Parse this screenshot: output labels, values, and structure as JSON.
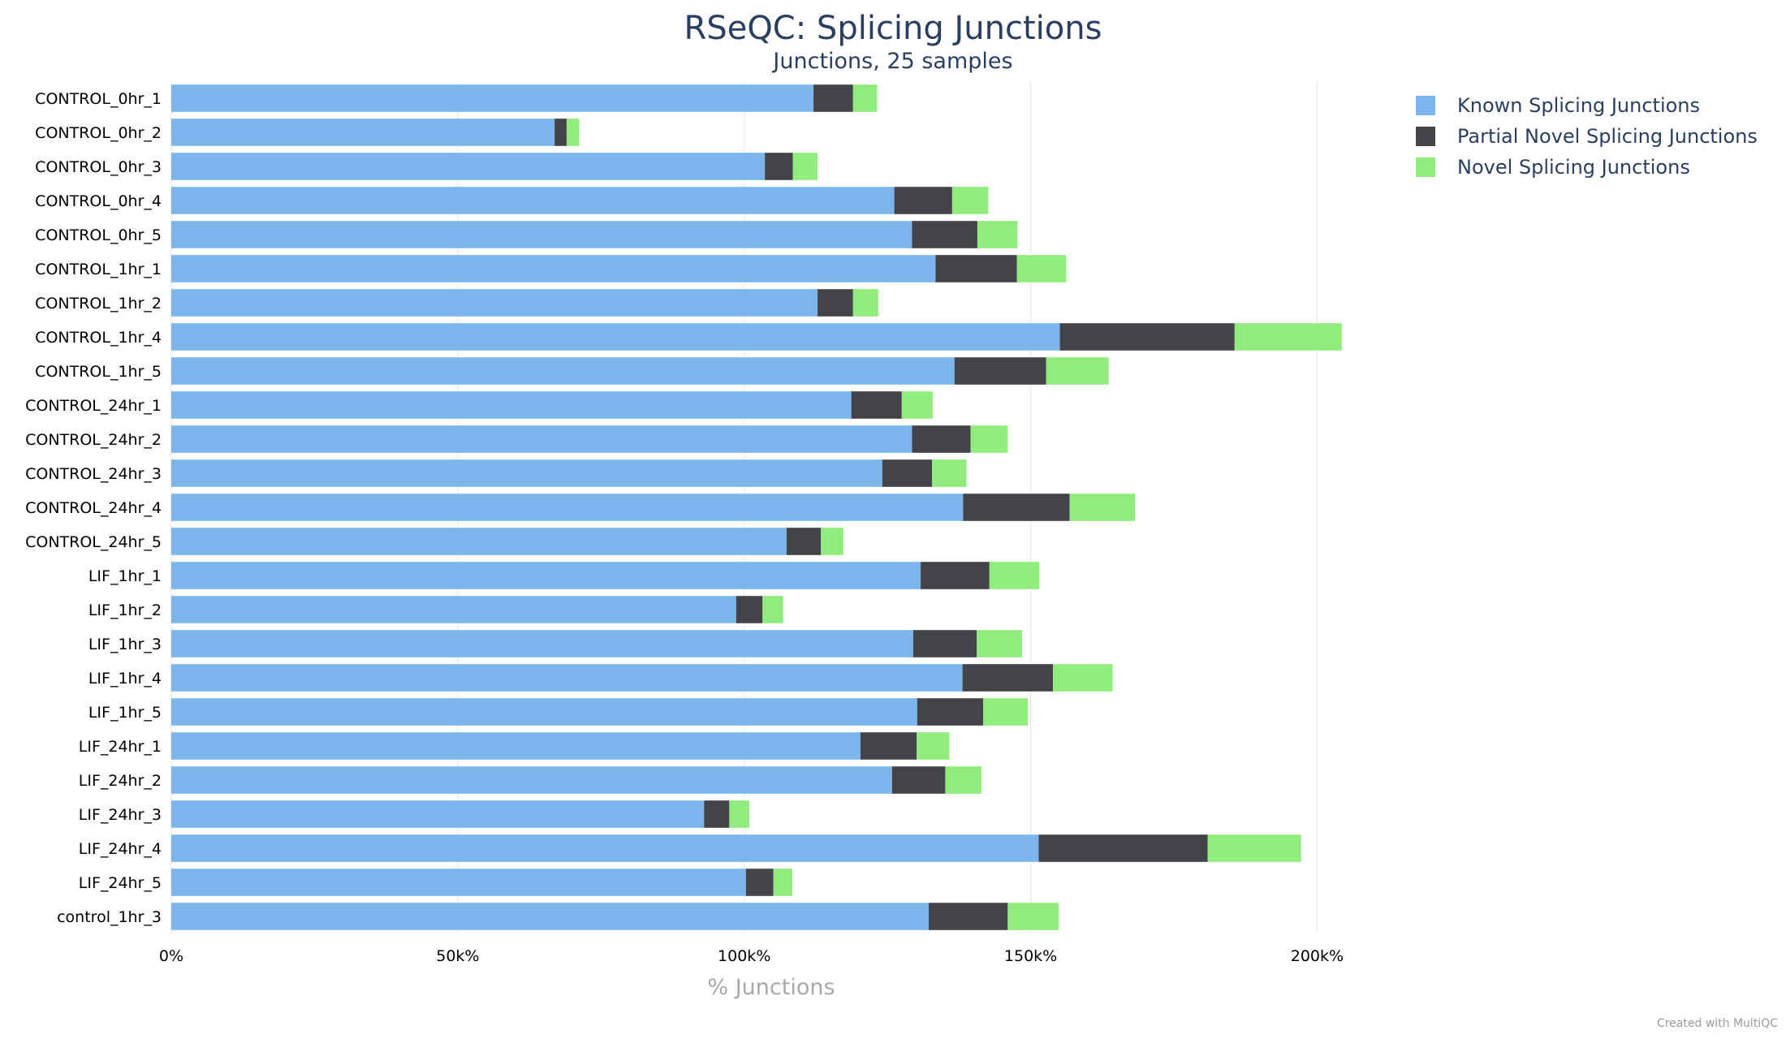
{
  "chart_data": {
    "type": "bar",
    "orientation": "horizontal",
    "stacked": true,
    "title": "RSeQC: Splicing Junctions",
    "subtitle": "Junctions, 25 samples",
    "xlabel": "% Junctions",
    "ylabel": "",
    "xlim": [
      0,
      210000
    ],
    "x_ticks": [
      {
        "value": 0,
        "label": "0%"
      },
      {
        "value": 50000,
        "label": "50k%"
      },
      {
        "value": 100000,
        "label": "100k%"
      },
      {
        "value": 150000,
        "label": "150k%"
      },
      {
        "value": 200000,
        "label": "200k%"
      }
    ],
    "grid": true,
    "legend_position": "top-right",
    "credit": "Created with MultiQC",
    "categories": [
      "CONTROL_0hr_1",
      "CONTROL_0hr_2",
      "CONTROL_0hr_3",
      "CONTROL_0hr_4",
      "CONTROL_0hr_5",
      "CONTROL_1hr_1",
      "CONTROL_1hr_2",
      "CONTROL_1hr_4",
      "CONTROL_1hr_5",
      "CONTROL_24hr_1",
      "CONTROL_24hr_2",
      "CONTROL_24hr_3",
      "CONTROL_24hr_4",
      "CONTROL_24hr_5",
      "LIF_1hr_1",
      "LIF_1hr_2",
      "LIF_1hr_3",
      "LIF_1hr_4",
      "LIF_1hr_5",
      "LIF_24hr_1",
      "LIF_24hr_2",
      "LIF_24hr_3",
      "LIF_24hr_4",
      "LIF_24hr_5",
      "control_1hr_3"
    ],
    "series": [
      {
        "name": "Known Splicing Junctions",
        "color": "#7cb5ec",
        "values": [
          112100,
          66900,
          103600,
          126200,
          129300,
          133400,
          112800,
          155100,
          136700,
          118700,
          129300,
          124100,
          138200,
          107400,
          130800,
          98600,
          129500,
          138100,
          130200,
          120300,
          125800,
          93000,
          151400,
          100300,
          132200
        ]
      },
      {
        "name": "Partial Novel Splicing Junctions",
        "color": "#434348",
        "values": [
          6900,
          2100,
          4900,
          10100,
          11400,
          14200,
          6200,
          30500,
          16000,
          8800,
          10200,
          8700,
          18600,
          6000,
          12000,
          4600,
          11100,
          15800,
          11500,
          9800,
          9300,
          4400,
          29500,
          4800,
          13800
        ]
      },
      {
        "name": "Novel Splicing Junctions",
        "color": "#90ed7d",
        "values": [
          4200,
          2200,
          4300,
          6300,
          7000,
          8600,
          4400,
          18700,
          10900,
          5400,
          6500,
          6000,
          11400,
          3900,
          8700,
          3600,
          7900,
          10400,
          7800,
          5700,
          6300,
          3500,
          16300,
          3300,
          8900
        ]
      }
    ]
  }
}
